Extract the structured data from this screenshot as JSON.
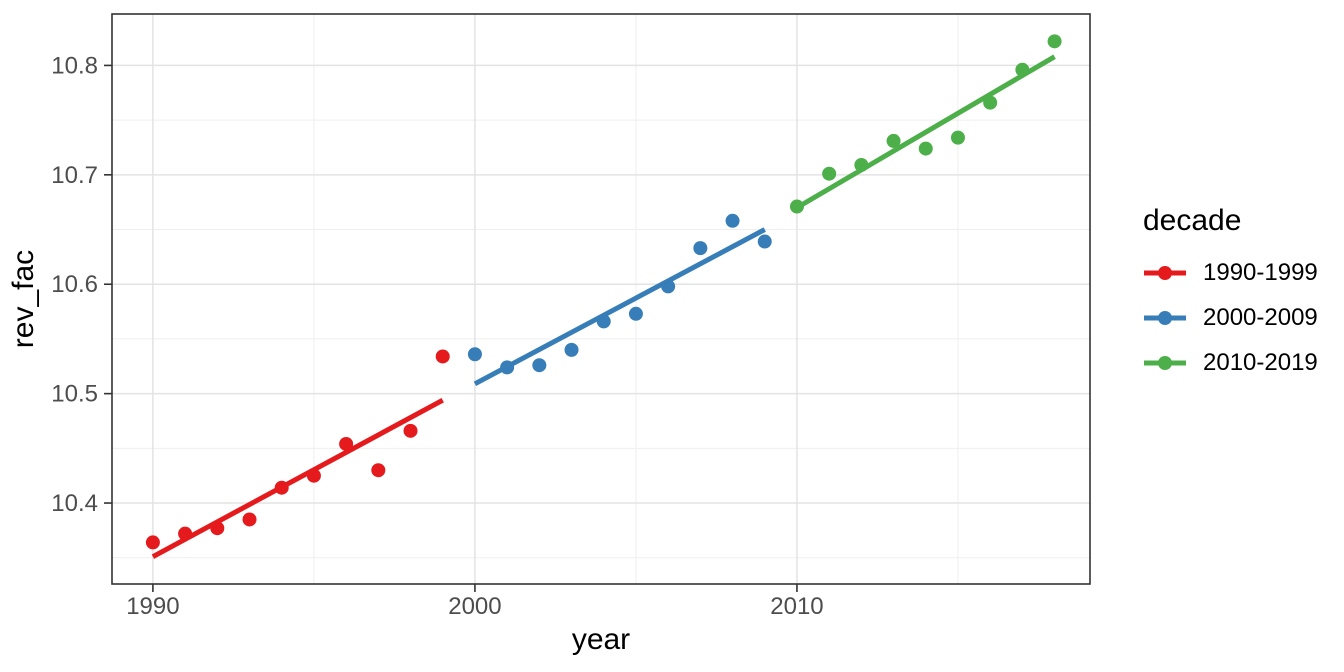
{
  "chart_data": {
    "type": "scatter",
    "title": "",
    "xlabel": "year",
    "ylabel": "rev_fac",
    "legend_title": "decade",
    "legend_position": "right",
    "grid": true,
    "xlim": [
      1988.73,
      2019.1
    ],
    "ylim": [
      10.326,
      10.847
    ],
    "x_ticks": [
      {
        "v": 1990,
        "label": "1990"
      },
      {
        "v": 2000,
        "label": "2000"
      },
      {
        "v": 2010,
        "label": "2010"
      }
    ],
    "x_minor_ticks": [
      1995,
      2005,
      2015
    ],
    "y_ticks": [
      {
        "v": 10.4,
        "label": "10.4"
      },
      {
        "v": 10.5,
        "label": "10.5"
      },
      {
        "v": 10.6,
        "label": "10.6"
      },
      {
        "v": 10.7,
        "label": "10.7"
      },
      {
        "v": 10.8,
        "label": "10.8"
      }
    ],
    "y_minor_ticks": [
      10.35,
      10.45,
      10.55,
      10.65,
      10.75
    ],
    "series": [
      {
        "name": "1990-1999",
        "color": "#E41A1C",
        "points": [
          [
            1990,
            10.364
          ],
          [
            1991,
            10.372
          ],
          [
            1992,
            10.377
          ],
          [
            1993,
            10.385
          ],
          [
            1994,
            10.414
          ],
          [
            1995,
            10.425
          ],
          [
            1996,
            10.454
          ],
          [
            1997,
            10.43
          ],
          [
            1998,
            10.466
          ],
          [
            1999,
            10.534
          ]
        ],
        "trend": {
          "x1": 1990,
          "y1": 10.351,
          "x2": 1999,
          "y2": 10.494
        }
      },
      {
        "name": "2000-2009",
        "color": "#377EB8",
        "points": [
          [
            2000,
            10.536
          ],
          [
            2001,
            10.524
          ],
          [
            2002,
            10.526
          ],
          [
            2003,
            10.54
          ],
          [
            2004,
            10.566
          ],
          [
            2005,
            10.573
          ],
          [
            2006,
            10.598
          ],
          [
            2007,
            10.633
          ],
          [
            2008,
            10.658
          ],
          [
            2009,
            10.639
          ]
        ],
        "trend": {
          "x1": 2000,
          "y1": 10.509,
          "x2": 2009,
          "y2": 10.65
        }
      },
      {
        "name": "2010-2019",
        "color": "#4DAF4A",
        "points": [
          [
            2010,
            10.671
          ],
          [
            2011,
            10.701
          ],
          [
            2012,
            10.709
          ],
          [
            2013,
            10.731
          ],
          [
            2014,
            10.724
          ],
          [
            2015,
            10.734
          ],
          [
            2016,
            10.766
          ],
          [
            2017,
            10.796
          ],
          [
            2018,
            10.822
          ]
        ],
        "trend": {
          "x1": 2010,
          "y1": 10.67,
          "x2": 2018,
          "y2": 10.808
        }
      }
    ],
    "theme": {
      "panel_background": "#FFFFFF",
      "panel_border": "#333333",
      "grid_major": "#E3E3E3",
      "grid_minor": "#EFEFEF",
      "tick_color": "#333333",
      "tick_label_color": "#4D4D4D"
    }
  }
}
